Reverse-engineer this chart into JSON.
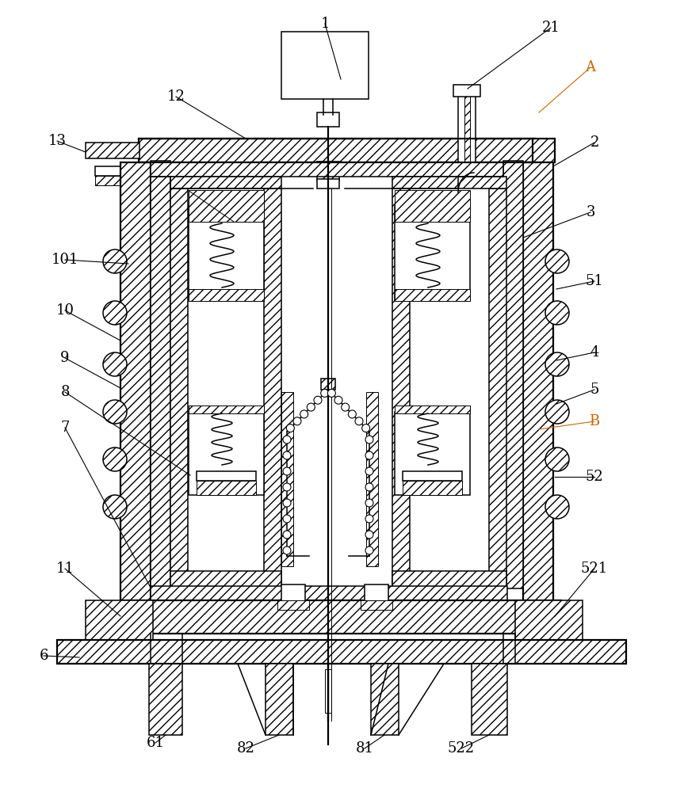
{
  "bg_color": "#ffffff",
  "line_color": "#000000",
  "orange_label_color": "#cc6600",
  "fig_width": 8.63,
  "fig_height": 10.0
}
